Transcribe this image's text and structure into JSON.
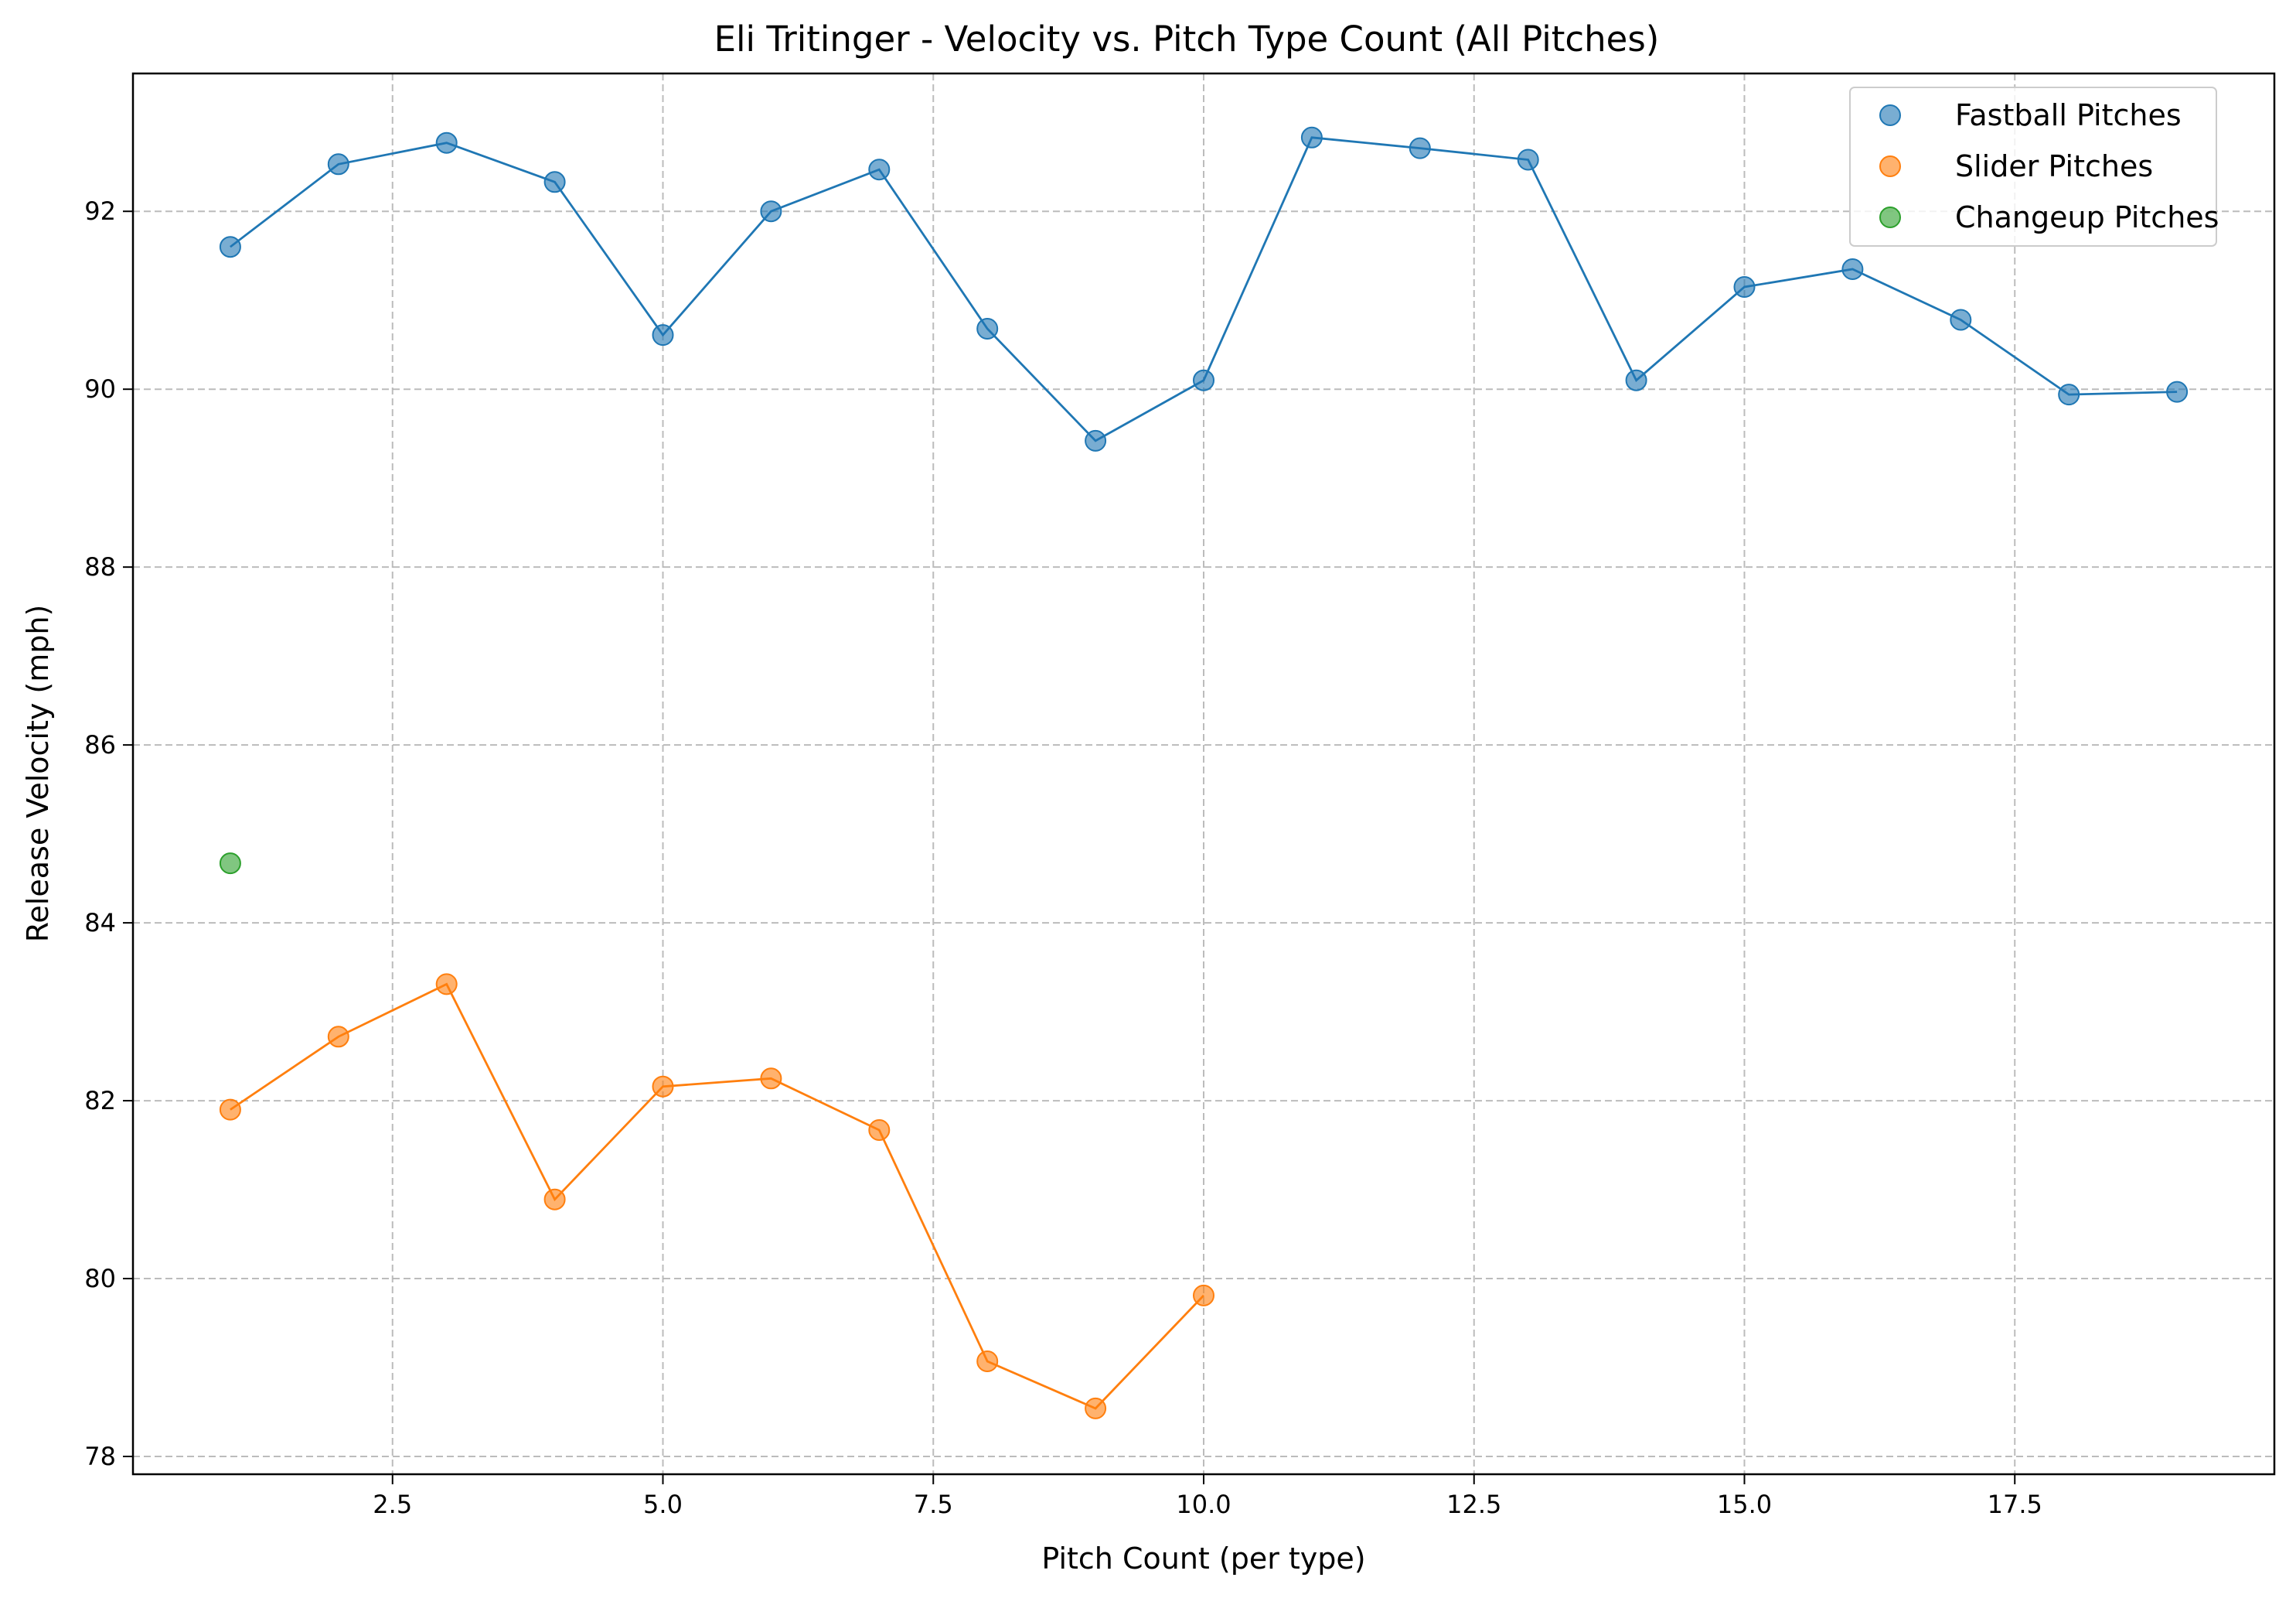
{
  "chart_data": {
    "type": "scatter",
    "title": "Eli Tritinger - Velocity vs. Pitch Type Count (All Pitches)",
    "xlabel": "Pitch Count (per type)",
    "ylabel": "Release Velocity (mph)",
    "xlim": [
      0.1,
      19.9
    ],
    "ylim": [
      77.8,
      93.55
    ],
    "xticks": [
      2.5,
      5.0,
      7.5,
      10.0,
      12.5,
      15.0,
      17.5
    ],
    "xtick_labels": [
      "2.5",
      "5.0",
      "7.5",
      "10.0",
      "12.5",
      "15.0",
      "17.5"
    ],
    "yticks": [
      78,
      80,
      82,
      84,
      86,
      88,
      90,
      92
    ],
    "ytick_labels": [
      "78",
      "80",
      "82",
      "84",
      "86",
      "88",
      "90",
      "92"
    ],
    "grid": true,
    "legend_position": "top-right",
    "series": [
      {
        "name": "Fastball Pitches",
        "color": "#1f77b4",
        "connected": true,
        "x": [
          1,
          2,
          3,
          4,
          5,
          6,
          7,
          8,
          9,
          10,
          11,
          12,
          13,
          14,
          15,
          16,
          17,
          18,
          19
        ],
        "y": [
          91.6,
          92.53,
          92.77,
          92.33,
          90.61,
          92.0,
          92.47,
          90.68,
          89.42,
          90.1,
          92.83,
          92.71,
          92.58,
          90.1,
          91.15,
          91.35,
          90.78,
          89.94,
          89.97
        ]
      },
      {
        "name": "Slider Pitches",
        "color": "#ff7f0e",
        "connected": true,
        "x": [
          1,
          2,
          3,
          4,
          5,
          6,
          7,
          8,
          9,
          10
        ],
        "y": [
          81.9,
          82.72,
          83.31,
          80.89,
          82.16,
          82.25,
          81.67,
          79.07,
          78.54,
          79.81
        ]
      },
      {
        "name": "Changeup Pitches",
        "color": "#2ca02c",
        "connected": false,
        "x": [
          1
        ],
        "y": [
          84.67
        ]
      }
    ]
  }
}
